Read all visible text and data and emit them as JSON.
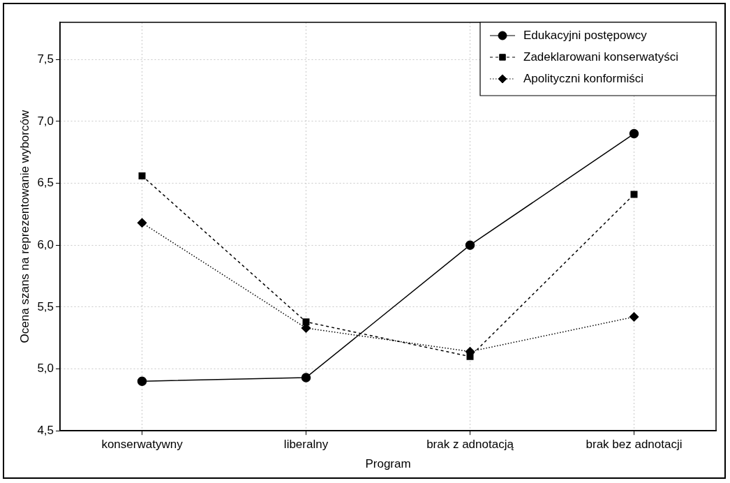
{
  "chart_data": {
    "type": "line",
    "xlabel": "Program",
    "ylabel": "Ocena szans na reprezentowanie wyborców",
    "categories": [
      "konserwatywny",
      "liberalny",
      "brak z adnotacją",
      "brak bez adnotacji"
    ],
    "series": [
      {
        "name": "Edukacyjni postępowcy",
        "color": "#000000",
        "marker": "circle",
        "line_style": "solid",
        "values": [
          4.9,
          4.93,
          6.0,
          6.9
        ]
      },
      {
        "name": "Zadeklarowani konserwatyści",
        "color": "#000000",
        "marker": "square",
        "line_style": "dashed",
        "values": [
          6.56,
          5.38,
          5.1,
          6.41
        ]
      },
      {
        "name": "Apolityczni konformiści",
        "color": "#000000",
        "marker": "diamond",
        "line_style": "dotted",
        "values": [
          6.18,
          5.33,
          5.14,
          5.42
        ]
      }
    ],
    "ylim": [
      4.5,
      7.8
    ],
    "yticks": [
      {
        "value": 4.5,
        "label": "4,5"
      },
      {
        "value": 5.0,
        "label": "5,0"
      },
      {
        "value": 5.5,
        "label": "5,5"
      },
      {
        "value": 6.0,
        "label": "6,0"
      },
      {
        "value": 6.5,
        "label": "6,5"
      },
      {
        "value": 7.0,
        "label": "7,0"
      },
      {
        "value": 7.5,
        "label": "7,5"
      }
    ],
    "grid": true,
    "legend": "top right"
  }
}
